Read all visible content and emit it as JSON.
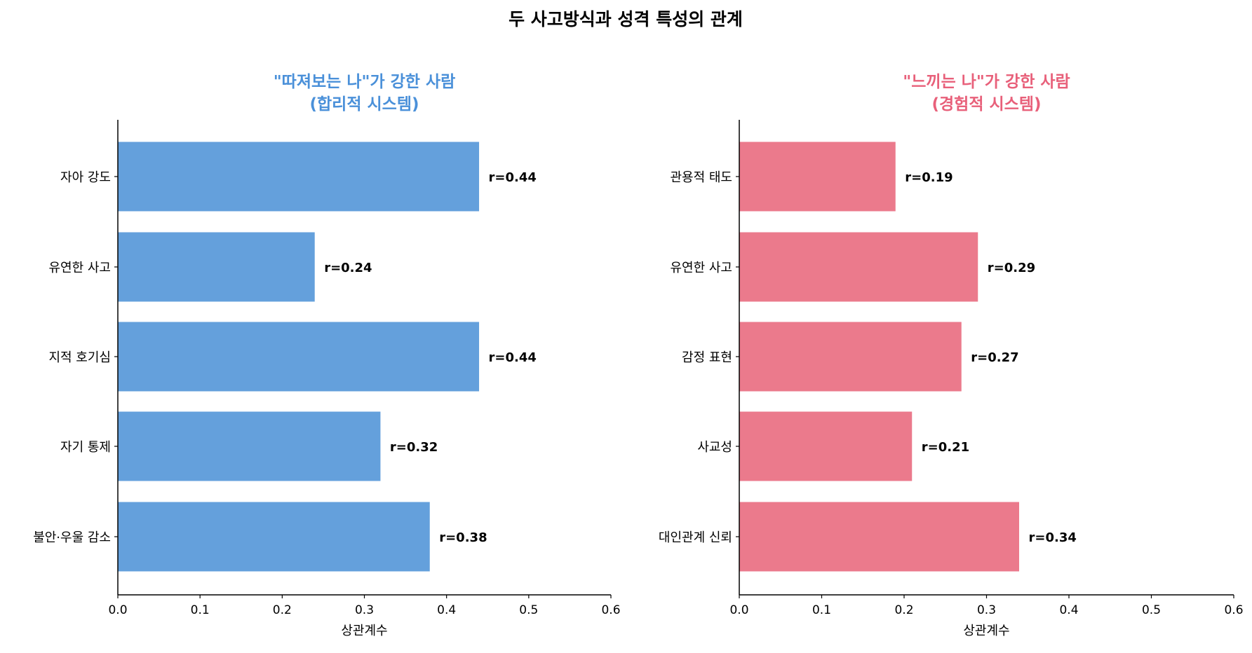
{
  "title": "두 사고방식과 성격 특성의 관계",
  "chart_data": [
    {
      "type": "bar",
      "orientation": "horizontal",
      "title": "\"따져보는 나\"가 강한 사람\n(합리적 시스템)",
      "title_color": "#4a90d9",
      "bar_color": "#64a0dc",
      "categories": [
        "자아 강도",
        "유연한 사고",
        "지적 호기심",
        "자기 통제",
        "불안·우울 감소"
      ],
      "values": [
        0.44,
        0.24,
        0.44,
        0.32,
        0.38
      ],
      "data_labels": [
        "r=0.44",
        "r=0.24",
        "r=0.44",
        "r=0.32",
        "r=0.38"
      ],
      "xlabel": "상관계수",
      "xlim": [
        0,
        0.6
      ],
      "xticks": [
        "0.0",
        "0.1",
        "0.2",
        "0.3",
        "0.4",
        "0.5",
        "0.6"
      ],
      "grid": false
    },
    {
      "type": "bar",
      "orientation": "horizontal",
      "title": "\"느끼는 나\"가 강한 사람\n(경험적 시스템)",
      "title_color": "#e8607a",
      "bar_color": "#eb7a8c",
      "categories": [
        "관용적 태도",
        "유연한 사고",
        "감정 표현",
        "사교성",
        "대인관계 신뢰"
      ],
      "values": [
        0.19,
        0.29,
        0.27,
        0.21,
        0.34
      ],
      "data_labels": [
        "r=0.19",
        "r=0.29",
        "r=0.27",
        "r=0.21",
        "r=0.34"
      ],
      "xlabel": "상관계수",
      "xlim": [
        0,
        0.6
      ],
      "xticks": [
        "0.0",
        "0.1",
        "0.2",
        "0.3",
        "0.4",
        "0.5",
        "0.6"
      ],
      "grid": false
    }
  ]
}
